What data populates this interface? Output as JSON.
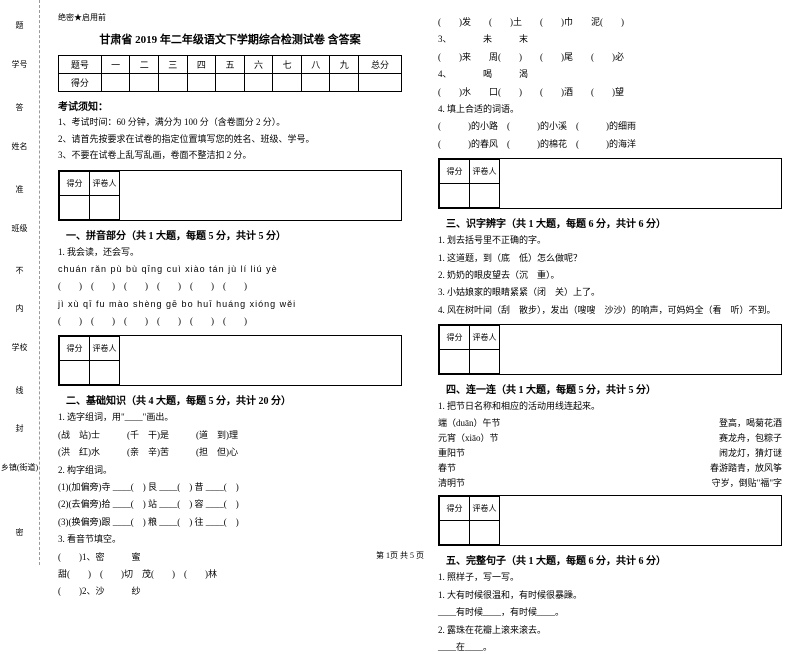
{
  "sidebar": {
    "items": [
      {
        "label": "学号"
      },
      {
        "label": "姓名"
      },
      {
        "label": "班级"
      },
      {
        "label": "学校"
      },
      {
        "label": "乡镇(街道)"
      }
    ],
    "markers": [
      "题",
      "答",
      "内",
      "线",
      "封",
      "密"
    ]
  },
  "secret": "绝密★启用前",
  "title": "甘肃省 2019 年二年级语文下学期综合检测试卷 含答案",
  "score_table": {
    "headers": [
      "题号",
      "一",
      "二",
      "三",
      "四",
      "五",
      "六",
      "七",
      "八",
      "九",
      "总分"
    ],
    "row": "得分"
  },
  "notice": {
    "title": "考试须知：",
    "items": [
      "1、考试时间：60 分钟，满分为 100 分（含卷面分 2 分）。",
      "2、请首先按要求在试卷的指定位置填写您的姓名、班级、学号。",
      "3、不要在试卷上乱写乱画，卷面不整洁扣 2 分。"
    ]
  },
  "scorebox": {
    "c1": "得分",
    "c2": "评卷人"
  },
  "sec1": {
    "title": "一、拼音部分（共 1 大题，每题 5 分，共计 5 分）",
    "q1": "1. 我会读，还会写。",
    "line1": "chuán rǎn   pù bù   qīng cuì   xiào tán   jù lí   liú yè",
    "line2": "jì xù   qī fu  mào shèng   gē bo   huī huáng  xióng wěi",
    "paren": "(　　)　(　　)　(　　)　(　　)　(　　)　(　　)"
  },
  "sec2": {
    "title": "二、基础知识（共 4 大题，每题 5 分，共计 20 分）",
    "q1": "1. 选字组词，用\"____\"画出。",
    "q1a": "(战　站)士　　　(千　干)是　　　(道　到)理",
    "q1b": "(洪　红)水　　　(亲　辛)苦　　　(担　但)心",
    "q2": "2. 构字组词。",
    "q2a": "(1)(加偏旁)寺 ____(　) 艮 ____(　) 昔 ____(　)",
    "q2b": "(2)(去偏旁)拾 ____(　) 站 ____(　) 容 ____(　)",
    "q2c": "(3)(换偏旁)跟 ____(　) 粮 ____(　) 往 ____(　)",
    "q3": "3. 看音节填空。",
    "q3a": "(　　)1、密　　　蜜",
    "q3b": "甜(　　)　(　　)切　茂(　　)　(　　)林",
    "q3c": "(　　)2、沙　　　纱"
  },
  "right_top": {
    "line1": "(　　)发　　(　　)土　　(　　)巾　　泥(　　)",
    "line2": "3、　　　　未　　　末",
    "line3": "(　　)来　　周(　　)　　(　　)尾　　(　　)必",
    "line4": "4、　　　　喝　　　渴",
    "line5": "(　　)水　　口(　　)　　(　　)酒　　(　　)望",
    "q4": "4. 填上合适的词语。",
    "q4a": "(　　　)的小路　(　　　)的小溪　(　　　)的细雨",
    "q4b": "(　　　)的春风　(　　　)的棉花　(　　　)的海洋"
  },
  "sec3": {
    "title": "三、识字辨字（共 1 大题，每题 6 分，共计 6 分）",
    "q1": "1. 划去括号里不正确的字。",
    "q1a": "1. 这道题，到（底　低）怎么做呢？",
    "q1b": "2. 奶奶的眼皮望去（沉　重）。",
    "q1c": "3. 小姑娘家的眼睛紧紧（闭　关）上了。",
    "q1d": "4. 风在树叶间（刮　散步），发出（嗖嗖　沙沙）的响声，可妈妈全（看　听）不到。"
  },
  "sec4": {
    "title": "四、连一连（共 1 大题，每题 5 分，共计 5 分）",
    "q1": "1. 把节日名称和相应的活动用线连起来。",
    "pairs": [
      [
        "端（duān）午节",
        "登高，喝菊花酒"
      ],
      [
        "元宵（xiāo）节",
        "赛龙舟，包粽子"
      ],
      [
        "重阳节",
        "闹龙灯，猜灯谜"
      ],
      [
        "春节",
        "春游踏青，放风筝"
      ],
      [
        "清明节",
        "守岁，倒贴\"福\"字"
      ]
    ]
  },
  "sec5": {
    "title": "五、完整句子（共 1 大题，每题 6 分，共计 6 分）",
    "q1": "1. 照样子，写一写。",
    "q1a": "1. 大有时候很温和，有时候很暴躁。",
    "q1b": "____有时候____，有时候____。",
    "q1c": "2. 露珠在花瓣上滚来滚去。",
    "q1d": "____在____。"
  },
  "footer": "第 1页 共 5 页"
}
